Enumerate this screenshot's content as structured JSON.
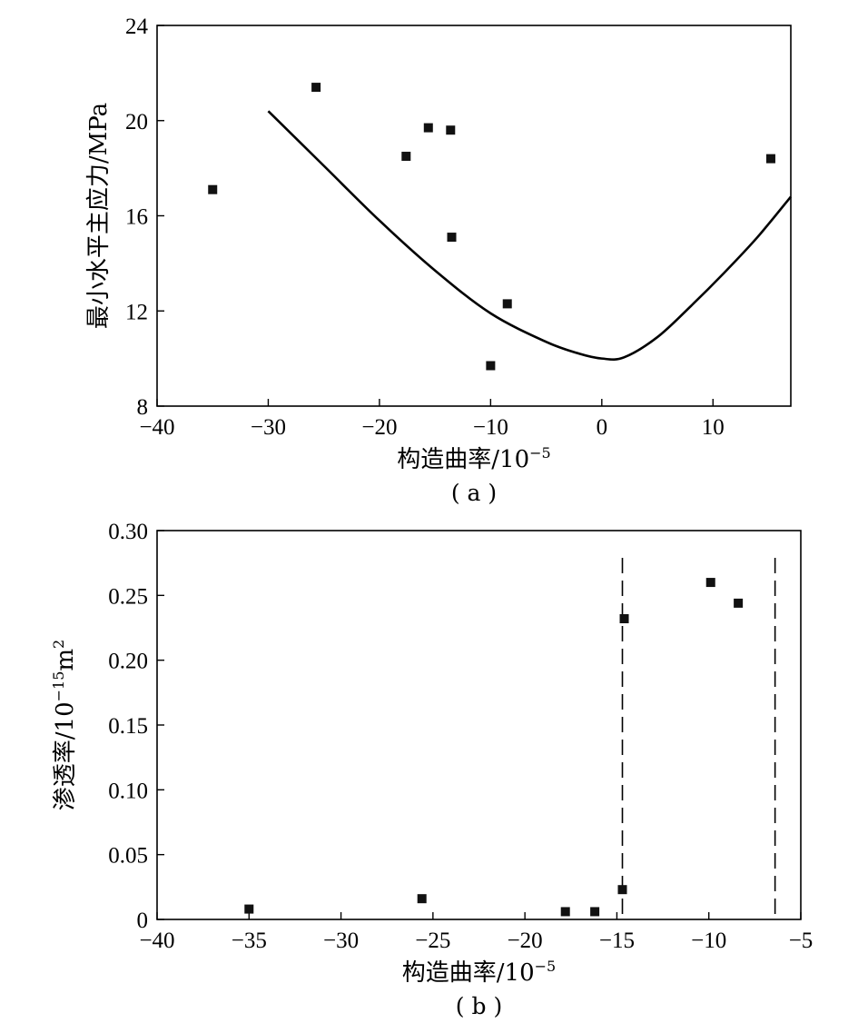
{
  "chart_data": [
    {
      "type": "scatter",
      "panel_label": "( a )",
      "xlabel": "构造曲率/10",
      "xlabel_sup": "−5",
      "ylabel": "最小水平主应力/MPa",
      "xlim": [
        -40,
        17
      ],
      "ylim": [
        8,
        24
      ],
      "xticks": [
        -40,
        -30,
        -20,
        -10,
        0,
        10
      ],
      "xtick_labels": [
        "−40",
        "−30",
        "−20",
        "−10",
        "0",
        "10"
      ],
      "yticks": [
        8,
        12,
        16,
        20,
        24
      ],
      "ytick_labels": [
        "8",
        "12",
        "16",
        "20",
        "24"
      ],
      "grid": false,
      "points": [
        {
          "x": -35,
          "y": 17.1
        },
        {
          "x": -25.7,
          "y": 21.4
        },
        {
          "x": -17.6,
          "y": 18.5
        },
        {
          "x": -15.6,
          "y": 19.7
        },
        {
          "x": -13.6,
          "y": 19.6
        },
        {
          "x": -13.5,
          "y": 15.1
        },
        {
          "x": -10,
          "y": 9.7
        },
        {
          "x": -8.5,
          "y": 12.3
        },
        {
          "x": 15.2,
          "y": 18.4
        }
      ],
      "fit_curve": {
        "x": [
          -30,
          -25,
          -20,
          -15,
          -10,
          -5,
          -2,
          0,
          2,
          5,
          8,
          11,
          14,
          17
        ],
        "y": [
          20.4,
          18.1,
          15.8,
          13.7,
          11.9,
          10.7,
          10.2,
          10.0,
          10.05,
          10.9,
          12.2,
          13.6,
          15.1,
          16.8
        ]
      }
    },
    {
      "type": "scatter",
      "panel_label": "( b )",
      "xlabel": "构造曲率/10",
      "xlabel_sup": "−5",
      "ylabel": "渗透率/10",
      "ylabel_sup": "−15",
      "ylabel_unit": "m",
      "ylabel_unit_sup": "2",
      "xlim": [
        -40,
        -5
      ],
      "ylim": [
        0,
        0.3
      ],
      "xticks": [
        -40,
        -35,
        -30,
        -25,
        -20,
        -15,
        -10,
        -5
      ],
      "xtick_labels": [
        "−40",
        "−35",
        "−30",
        "−25",
        "−20",
        "−15",
        "−10",
        "−5"
      ],
      "yticks": [
        0,
        0.05,
        0.1,
        0.15,
        0.2,
        0.25,
        0.3
      ],
      "ytick_labels": [
        "0",
        "0.05",
        "0.10",
        "0.15",
        "0.20",
        "0.25",
        "0.30"
      ],
      "grid": false,
      "points": [
        {
          "x": -35,
          "y": 0.008
        },
        {
          "x": -25.6,
          "y": 0.016
        },
        {
          "x": -17.8,
          "y": 0.006
        },
        {
          "x": -16.2,
          "y": 0.006
        },
        {
          "x": -14.7,
          "y": 0.023
        },
        {
          "x": -14.6,
          "y": 0.232
        },
        {
          "x": -9.9,
          "y": 0.26
        },
        {
          "x": -8.4,
          "y": 0.244
        }
      ],
      "dashed_verticals": [
        -14.7,
        -6.4
      ]
    }
  ]
}
